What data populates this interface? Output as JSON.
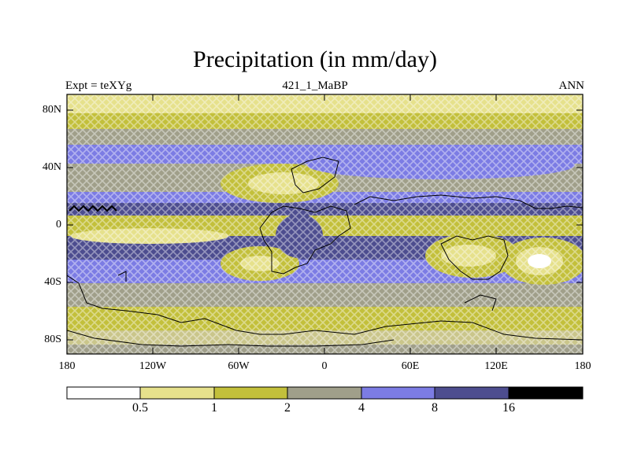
{
  "title": "Precipitation (in mm/day)",
  "subtitle_left": "Expt = teXYg",
  "subtitle_center": "421_1_MaBP",
  "subtitle_right": "ANN",
  "map": {
    "projection": "cylindrical-equidistant",
    "lon_range": [
      -180,
      180
    ],
    "lat_range": [
      -90,
      90
    ],
    "y_ticks": [
      {
        "label": "80N",
        "lat": 80
      },
      {
        "label": "40N",
        "lat": 40
      },
      {
        "label": "0",
        "lat": 0
      },
      {
        "label": "40S",
        "lat": -40
      },
      {
        "label": "80S",
        "lat": -80
      }
    ],
    "x_ticks": [
      {
        "label": "180",
        "lon": -180
      },
      {
        "label": "120W",
        "lon": -120
      },
      {
        "label": "60W",
        "lon": -60
      },
      {
        "label": "0",
        "lon": 0
      },
      {
        "label": "60E",
        "lon": 60
      },
      {
        "label": "120E",
        "lon": 120
      },
      {
        "label": "180",
        "lon": 180
      }
    ]
  },
  "colorbar": {
    "levels": [
      "0.5",
      "1",
      "2",
      "4",
      "8",
      "16"
    ],
    "colors": [
      "#ffffff",
      "#e6e18c",
      "#c3c03b",
      "#a09f8a",
      "#7c7ce4",
      "#4d4d8f",
      "#000000"
    ]
  }
}
